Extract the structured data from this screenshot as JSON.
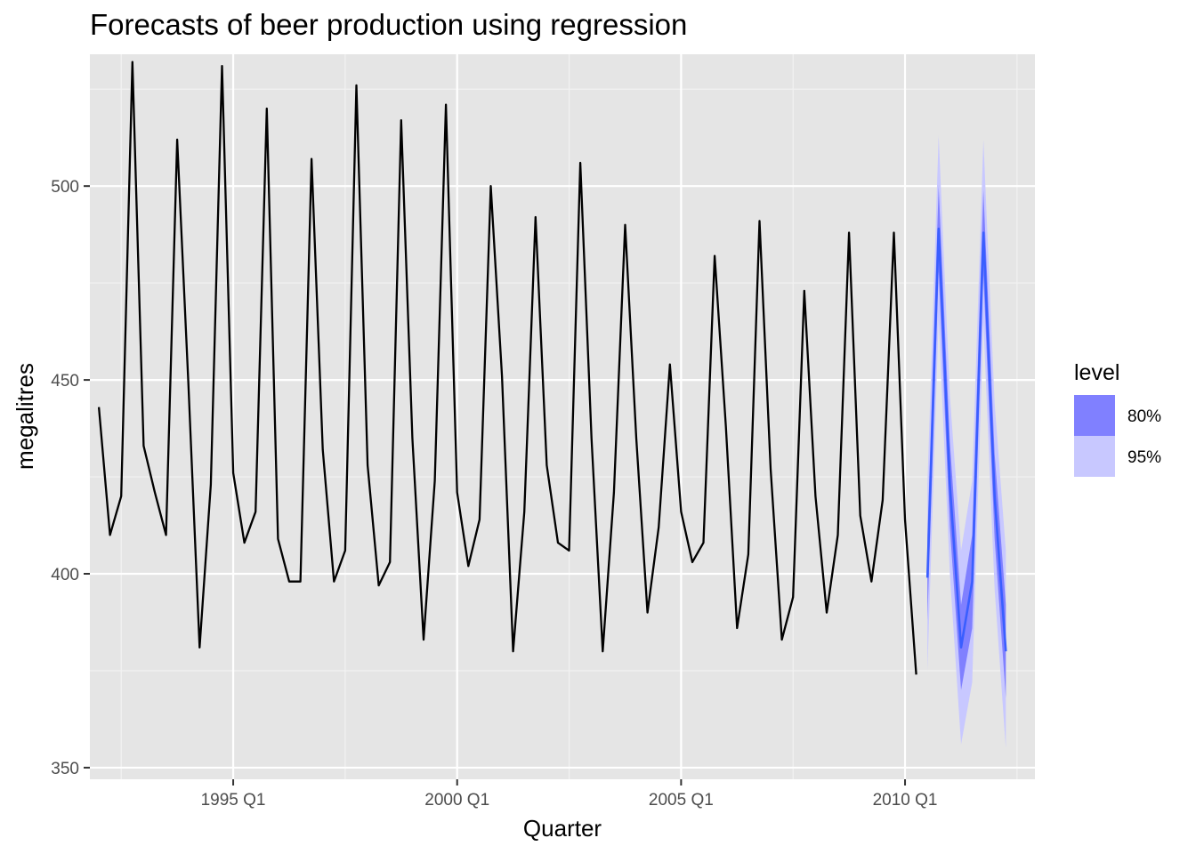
{
  "chart_data": {
    "type": "line",
    "title": "Forecasts of beer production using regression",
    "xlabel": "Quarter",
    "ylabel": "megalitres",
    "x_ticks": [
      "1995 Q1",
      "2000 Q1",
      "2005 Q1",
      "2010 Q1"
    ],
    "y_ticks": [
      "350",
      "400",
      "450",
      "500"
    ],
    "xlim": [
      1991.8,
      2012.9
    ],
    "ylim": [
      347,
      534
    ],
    "grid": true,
    "legend": {
      "title": "level",
      "position": "right",
      "items": [
        {
          "label": "80%",
          "color": "#8080ff"
        },
        {
          "label": "95%",
          "color": "#c8c8ff"
        }
      ]
    },
    "series": [
      {
        "color": "#000000",
        "x_start": 1992.0,
        "step": 0.25,
        "values": [
          443,
          410,
          420,
          532,
          433,
          421,
          410,
          512,
          449,
          381,
          423,
          531,
          426,
          408,
          416,
          520,
          409,
          398,
          398,
          507,
          432,
          398,
          406,
          526,
          428,
          397,
          403,
          517,
          435,
          383,
          424,
          521,
          421,
          402,
          414,
          500,
          451,
          380,
          416,
          492,
          428,
          408,
          406,
          506,
          435,
          380,
          421,
          490,
          435,
          390,
          412,
          454,
          416,
          403,
          408,
          482,
          438,
          386,
          405,
          491,
          427,
          383,
          394,
          473,
          420,
          390,
          410,
          488,
          415,
          398,
          419,
          488,
          414,
          374
        ]
      },
      {
        "color": "#3a5eff",
        "x_start": 2010.5,
        "step": 0.25,
        "values": [
          399,
          489,
          423,
          381,
          398,
          488,
          420,
          380
        ],
        "lower80": [
          388,
          478,
          412,
          370,
          386,
          477,
          409,
          368
        ],
        "upper80": [
          410,
          500,
          434,
          392,
          410,
          499,
          431,
          392
        ],
        "lower95": [
          375,
          466,
          400,
          356,
          372,
          465,
          396,
          355
        ],
        "upper95": [
          423,
          513,
          446,
          406,
          424,
          512,
          444,
          406
        ]
      }
    ]
  }
}
